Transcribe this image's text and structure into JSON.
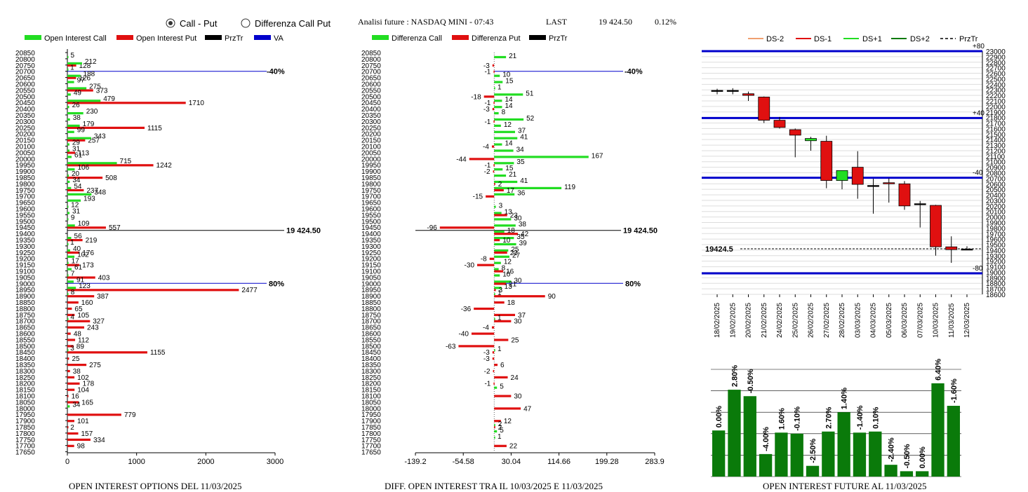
{
  "header": {
    "radio_call_put": "Call - Put",
    "radio_diff": "Differenza Call Put",
    "title": "Analisi future : NASDAQ MINI - 07:43",
    "last_label": "LAST",
    "last_value": "19 424.50",
    "change": "0.12%"
  },
  "panel1": {
    "title": "OPEN INTEREST OPTIONS DEL 11/03/2025",
    "legend": [
      "Open Interest Call",
      "Open Interest Put",
      "PrzTr",
      "VA"
    ],
    "price_label": "19 424.50",
    "pct_40": "-40%",
    "pct_80": "80%",
    "x_ticks": [
      "0",
      "1000",
      "2000",
      "3000"
    ]
  },
  "panel2": {
    "title": "DIFF. OPEN INTEREST TRA IL 10/03/2025 E 11/03/2025",
    "legend": [
      "Differenza Call",
      "Differenza Put",
      "PrzTr"
    ],
    "price_label": "19 424.50",
    "pct_40": "-40%",
    "pct_80": "80%",
    "x_ticks": [
      "-139.2",
      "-54.58",
      "30.04",
      "114.66",
      "199.28",
      "283.9"
    ]
  },
  "panel3": {
    "title": "OPEN INTEREST FUTURE AL 11/03/2025",
    "legend": [
      "DS-2",
      "DS-1",
      "DS+1",
      "DS+2",
      "PrzTr"
    ],
    "price_label": "19424.5",
    "lvl_labels": [
      "+80",
      "+40",
      "-40",
      "-80"
    ],
    "y_ticks": [
      "23000",
      "22900",
      "22800",
      "22700",
      "22600",
      "22500",
      "22400",
      "22300",
      "22200",
      "22100",
      "22000",
      "21900",
      "21800",
      "21700",
      "21600",
      "21500",
      "21400",
      "21300",
      "21200",
      "21100",
      "21000",
      "20900",
      "20800",
      "20700",
      "20600",
      "20500",
      "20400",
      "20300",
      "20200",
      "20100",
      "20000",
      "19900",
      "19800",
      "19700",
      "19600",
      "19500",
      "19400",
      "19300",
      "19200",
      "19100",
      "19000",
      "18900",
      "18800",
      "18700",
      "18600"
    ]
  },
  "colors": {
    "call": "#22dd22",
    "put": "#e01010",
    "price": "#000000",
    "va": "#0000cc",
    "oi_bar": "#0a7a0a"
  },
  "chart_data": [
    {
      "type": "bar",
      "title": "OPEN INTEREST OPTIONS DEL 11/03/2025",
      "strikes": [
        "20850",
        "20800",
        "20750",
        "20700",
        "20650",
        "20600",
        "20550",
        "20500",
        "20450",
        "20400",
        "20350",
        "20300",
        "20250",
        "20200",
        "20150",
        "20100",
        "20050",
        "20000",
        "19950",
        "19900",
        "19850",
        "19800",
        "19750",
        "19700",
        "19650",
        "19600",
        "19550",
        "19500",
        "19450",
        "19400",
        "19350",
        "19300",
        "19250",
        "19200",
        "19150",
        "19100",
        "19050",
        "19000",
        "18950",
        "18900",
        "18850",
        "18800",
        "18750",
        "18700",
        "18650",
        "18600",
        "18550",
        "18500",
        "18450",
        "18400",
        "18350",
        "18300",
        "18250",
        "18200",
        "18150",
        "18100",
        "18050",
        "18000",
        "17950",
        "17900",
        "17850",
        "17800",
        "17750",
        "17700",
        "17650"
      ],
      "series": [
        {
          "name": "Open Interest Call",
          "values": [
            null,
            5,
            212,
            1,
            188,
            97,
            275,
            49,
            479,
            26,
            230,
            38,
            179,
            99,
            343,
            29,
            31,
            61,
            715,
            106,
            20,
            34,
            54,
            348,
            193,
            12,
            31,
            9,
            109,
            null,
            56,
            1,
            40,
            102,
            17,
            61,
            7,
            91,
            123,
            8,
            null,
            null,
            null,
            4,
            null,
            null,
            null,
            null,
            3,
            null,
            null,
            null,
            null,
            null,
            null,
            null,
            null,
            34,
            null,
            null,
            null,
            null,
            null,
            null,
            null
          ]
        },
        {
          "name": "Open Interest Put",
          "values": [
            null,
            null,
            128,
            null,
            126,
            null,
            373,
            null,
            1710,
            null,
            null,
            null,
            1115,
            null,
            257,
            null,
            113,
            null,
            1242,
            null,
            508,
            null,
            237,
            null,
            null,
            null,
            null,
            null,
            557,
            null,
            219,
            null,
            176,
            null,
            173,
            null,
            403,
            null,
            2477,
            387,
            160,
            65,
            105,
            327,
            243,
            48,
            112,
            89,
            1155,
            25,
            275,
            38,
            102,
            178,
            104,
            16,
            165,
            null,
            779,
            101,
            2,
            157,
            334,
            98,
            null
          ]
        }
      ],
      "price": "19424.50",
      "xlim": [
        0,
        3000
      ]
    },
    {
      "type": "bar",
      "title": "DIFF. OPEN INTEREST TRA IL 10/03/2025 E 11/03/2025",
      "strikes": [
        "20850",
        "20800",
        "20750",
        "20700",
        "20650",
        "20600",
        "20550",
        "20500",
        "20450",
        "20400",
        "20350",
        "20300",
        "20250",
        "20200",
        "20150",
        "20100",
        "20050",
        "20000",
        "19950",
        "19900",
        "19850",
        "19800",
        "19750",
        "19700",
        "19650",
        "19600",
        "19550",
        "19500",
        "19450",
        "19400",
        "19350",
        "19300",
        "19250",
        "19200",
        "19150",
        "19100",
        "19050",
        "19000",
        "18950",
        "18900",
        "18850",
        "18800",
        "18750",
        "18700",
        "18650",
        "18600",
        "18550",
        "18500",
        "18450",
        "18400",
        "18350",
        "18300",
        "18250",
        "18200",
        "18150",
        "18100",
        "18050",
        "18000",
        "17950",
        "17900",
        "17850",
        "17800",
        "17750",
        "17700",
        "17650"
      ],
      "series": [
        {
          "name": "Differenza Call",
          "values": [
            null,
            21,
            null,
            null,
            10,
            15,
            1,
            51,
            14,
            14,
            8,
            52,
            12,
            37,
            41,
            14,
            34,
            167,
            35,
            15,
            21,
            41,
            119,
            36,
            null,
            3,
            13,
            30,
            38,
            18,
            35,
            39,
            25,
            27,
            12,
            8,
            10,
            30,
            13,
            1,
            null,
            null,
            null,
            1,
            null,
            null,
            null,
            null,
            1,
            null,
            null,
            null,
            null,
            null,
            5,
            null,
            null,
            null,
            null,
            null,
            2,
            5,
            1,
            null,
            null
          ]
        },
        {
          "name": "Differenza Put",
          "values": [
            null,
            null,
            -3,
            -1,
            null,
            null,
            null,
            -18,
            -1,
            -3,
            null,
            -1,
            null,
            null,
            null,
            -4,
            null,
            -44,
            -1,
            -2,
            null,
            2,
            17,
            -15,
            null,
            null,
            23,
            null,
            -96,
            42,
            10,
            null,
            23,
            -8,
            -30,
            16,
            null,
            21,
            3,
            90,
            18,
            -36,
            37,
            30,
            -4,
            -40,
            25,
            -63,
            -3,
            -3,
            6,
            -2,
            24,
            -1,
            null,
            30,
            null,
            47,
            null,
            12,
            2,
            null,
            null,
            22,
            null
          ]
        }
      ],
      "price": "19424.50",
      "xlim": [
        -139.2,
        283.9
      ]
    },
    {
      "type": "candlestick",
      "dates": [
        "18/02/2025",
        "19/02/2025",
        "20/02/2025",
        "21/02/2025",
        "24/02/2025",
        "25/02/2025",
        "26/02/2025",
        "27/02/2025",
        "28/02/2025",
        "03/03/2025",
        "04/03/2025",
        "05/03/2025",
        "06/03/2025",
        "07/03/2025",
        "10/03/2025",
        "11/03/2025",
        "12/03/2025"
      ],
      "ohlc": [
        [
          22290,
          22320,
          22220,
          22290
        ],
        [
          22290,
          22330,
          22220,
          22290
        ],
        [
          22230,
          22270,
          22100,
          22200
        ],
        [
          22170,
          22180,
          21700,
          21750
        ],
        [
          21750,
          21810,
          21600,
          21620
        ],
        [
          21580,
          21600,
          21080,
          21480
        ],
        [
          21380,
          21450,
          21200,
          21420
        ],
        [
          21370,
          21470,
          20520,
          20660
        ],
        [
          20660,
          20840,
          20500,
          20840
        ],
        [
          20900,
          21190,
          20330,
          20590
        ],
        [
          20560,
          20690,
          20060,
          20570
        ],
        [
          20620,
          20700,
          20260,
          20600
        ],
        [
          20600,
          20650,
          20130,
          20200
        ],
        [
          20240,
          20290,
          19810,
          20230
        ],
        [
          20210,
          20220,
          19300,
          19460
        ],
        [
          19460,
          19650,
          19170,
          19410
        ],
        [
          19420,
          19470,
          19400,
          19420
        ]
      ],
      "levels": [
        {
          "label": "+80",
          "value": 23000
        },
        {
          "label": "+40",
          "value": 21790
        },
        {
          "label": "-40",
          "value": 20710
        },
        {
          "label": "-80",
          "value": 18980
        }
      ],
      "price": 19424.5,
      "ylim": [
        18600,
        23000
      ]
    },
    {
      "type": "bar",
      "title": "OPEN INTEREST FUTURE AL 11/03/2025",
      "categories": [
        "18/02/2025",
        "19/02/2025",
        "20/02/2025",
        "21/02/2025",
        "24/02/2025",
        "25/02/2025",
        "26/02/2025",
        "27/02/2025",
        "28/02/2025",
        "03/03/2025",
        "04/03/2025",
        "05/03/2025",
        "06/03/2025",
        "07/03/2025",
        "10/03/2025",
        "11/03/2025"
      ],
      "labels": [
        "0.00%",
        "2.80%",
        "-0.50%",
        "-4.00%",
        "1.60%",
        "-0.10%",
        "-2.50%",
        "2.70%",
        "1.40%",
        "-1.40%",
        "0.10%",
        "-2.40%",
        "-0.50%",
        "0.00%",
        "6.40%",
        "-1.60%"
      ],
      "values": [
        0.43,
        0.81,
        0.75,
        0.21,
        0.41,
        0.4,
        0.1,
        0.42,
        0.6,
        0.41,
        0.42,
        0.11,
        0.05,
        0.05,
        0.87,
        0.66
      ]
    }
  ]
}
